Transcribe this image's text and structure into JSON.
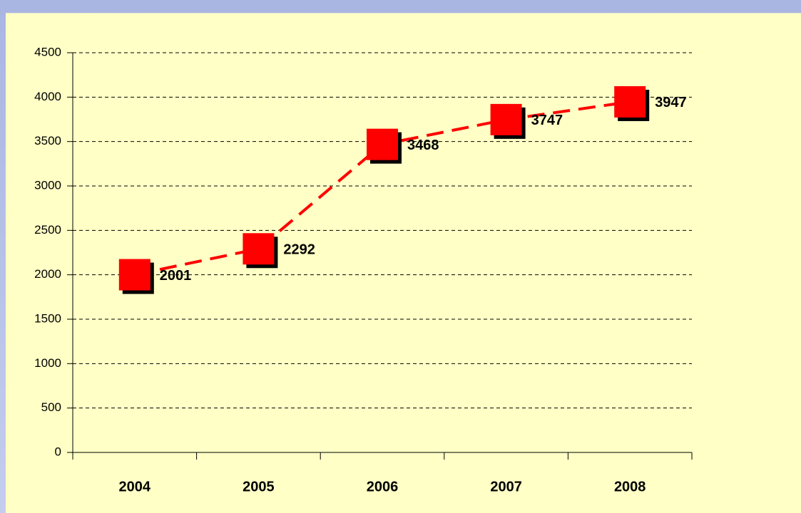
{
  "chart_data": {
    "type": "line",
    "categories": [
      "2004",
      "2005",
      "2006",
      "2007",
      "2008"
    ],
    "values": [
      2001,
      2292,
      3468,
      3747,
      3947
    ],
    "color": "#ff0000",
    "ylim": [
      0,
      4500
    ],
    "yticks": [
      0,
      500,
      1000,
      1500,
      2000,
      2500,
      3000,
      3500,
      4000,
      4500
    ],
    "grid": true
  }
}
